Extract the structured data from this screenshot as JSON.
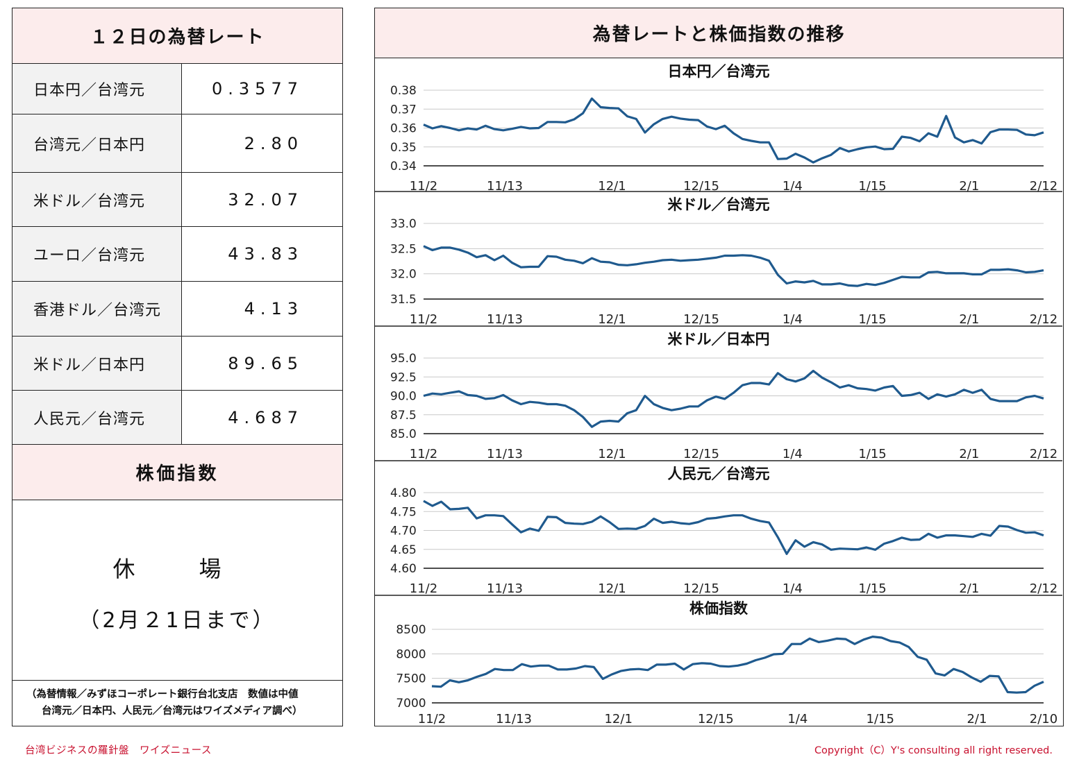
{
  "left_panel": {
    "title": "１２日の為替レート",
    "rates": [
      {
        "label": "日本円／台湾元",
        "value": "0.3577"
      },
      {
        "label": "台湾元／日本円",
        "value": "2.80"
      },
      {
        "label": "米ドル／台湾元",
        "value": "32.07"
      },
      {
        "label": "ユーロ／台湾元",
        "value": "43.83"
      },
      {
        "label": "香港ドル／台湾元",
        "value": "4.13"
      },
      {
        "label": "米ドル／日本円",
        "value": "89.65"
      },
      {
        "label": "人民元／台湾元",
        "value": "4.687"
      }
    ],
    "stock_title": "株価指数",
    "closed_text": "休　場",
    "closed_until": "（2月２1日まで）",
    "note_line1": "（為替情報／みずほコーポレート銀行台北支店　数値は中値",
    "note_line2": "台湾元／日本円、人民元／台湾元はワイズメディア調べ）"
  },
  "right_panel": {
    "title": "為替レートと株価指数の推移"
  },
  "footer": {
    "left": "台湾ビジネスの羅針盤　ワイズニュース",
    "right": "Copyright（C）Y's consulting all right reserved."
  },
  "colors": {
    "line": "#1f5a8e",
    "header_bg": "#fcecec",
    "label_bg": "#f2f2f2",
    "footer_text": "#c8102e"
  },
  "chart_data": [
    {
      "type": "line",
      "title": "日本円／台湾元",
      "ylim": [
        0.34,
        0.38
      ],
      "yticks": [
        "0.38",
        "0.37",
        "0.36",
        "0.35",
        "0.34"
      ],
      "xticks": [
        "11/2",
        "11/13",
        "12/1",
        "12/15",
        "1/4",
        "1/15",
        "2/1",
        "2/12"
      ],
      "grid": true,
      "series": [
        {
          "values": [
            0.3618,
            0.3598,
            0.361,
            0.36,
            0.3588,
            0.3598,
            0.3592,
            0.3612,
            0.3594,
            0.3588,
            0.3596,
            0.3606,
            0.3598,
            0.36,
            0.3632,
            0.3632,
            0.363,
            0.3646,
            0.3678,
            0.3756,
            0.371,
            0.3706,
            0.3704,
            0.3662,
            0.3648,
            0.3576,
            0.362,
            0.3648,
            0.366,
            0.365,
            0.3644,
            0.3642,
            0.3608,
            0.3594,
            0.3612,
            0.3572,
            0.3542,
            0.3532,
            0.3524,
            0.3524,
            0.3436,
            0.3438,
            0.3464,
            0.3444,
            0.3418,
            0.344,
            0.3458,
            0.3494,
            0.3476,
            0.3488,
            0.3498,
            0.3502,
            0.3488,
            0.349,
            0.3554,
            0.3548,
            0.353,
            0.3572,
            0.3554,
            0.3664,
            0.355,
            0.3524,
            0.3536,
            0.3518,
            0.3578,
            0.3592,
            0.3592,
            0.359,
            0.3566,
            0.3562,
            0.3577
          ]
        }
      ]
    },
    {
      "type": "line",
      "title": "米ドル／台湾元",
      "ylim": [
        31.5,
        33.0
      ],
      "yticks": [
        "33.0",
        "32.5",
        "32.0",
        "31.5"
      ],
      "xticks": [
        "11/2",
        "11/13",
        "12/1",
        "12/15",
        "1/4",
        "1/15",
        "2/1",
        "2/12"
      ],
      "grid": true,
      "series": [
        {
          "values": [
            32.55,
            32.47,
            32.52,
            32.52,
            32.48,
            32.42,
            32.33,
            32.37,
            32.27,
            32.36,
            32.22,
            32.13,
            32.14,
            32.14,
            32.35,
            32.34,
            32.28,
            32.26,
            32.21,
            32.31,
            32.24,
            32.23,
            32.18,
            32.17,
            32.19,
            32.22,
            32.24,
            32.27,
            32.28,
            32.26,
            32.27,
            32.28,
            32.3,
            32.32,
            32.36,
            32.36,
            32.37,
            32.36,
            32.32,
            32.26,
            31.98,
            31.81,
            31.85,
            31.83,
            31.86,
            31.79,
            31.79,
            31.81,
            31.77,
            31.76,
            31.8,
            31.78,
            31.82,
            31.88,
            31.94,
            31.93,
            31.93,
            32.03,
            32.04,
            32.01,
            32.01,
            32.01,
            31.99,
            31.99,
            32.08,
            32.08,
            32.09,
            32.07,
            32.03,
            32.04,
            32.07
          ]
        }
      ]
    },
    {
      "type": "line",
      "title": "米ドル／日本円",
      "ylim": [
        85.0,
        95.0
      ],
      "yticks": [
        "95.0",
        "92.5",
        "90.0",
        "87.5",
        "85.0"
      ],
      "xticks": [
        "11/2",
        "11/13",
        "12/1",
        "12/15",
        "1/4",
        "1/15",
        "2/1",
        "2/12"
      ],
      "grid": true,
      "series": [
        {
          "values": [
            90.0,
            90.3,
            90.2,
            90.4,
            90.6,
            90.1,
            90.0,
            89.6,
            89.7,
            90.1,
            89.4,
            88.9,
            89.2,
            89.1,
            88.9,
            88.9,
            88.7,
            88.1,
            87.2,
            85.9,
            86.6,
            86.7,
            86.6,
            87.7,
            88.1,
            90.0,
            88.9,
            88.4,
            88.1,
            88.3,
            88.6,
            88.6,
            89.4,
            89.9,
            89.6,
            90.4,
            91.4,
            91.7,
            91.7,
            91.5,
            93.0,
            92.2,
            91.9,
            92.3,
            93.3,
            92.4,
            91.8,
            91.1,
            91.4,
            91.0,
            90.9,
            90.7,
            91.1,
            91.3,
            90.0,
            90.1,
            90.4,
            89.6,
            90.2,
            89.9,
            90.2,
            90.8,
            90.4,
            90.8,
            89.6,
            89.3,
            89.3,
            89.3,
            89.8,
            90.0,
            89.65
          ]
        }
      ]
    },
    {
      "type": "line",
      "title": "人民元／台湾元",
      "ylim": [
        4.6,
        4.8
      ],
      "yticks": [
        "4.80",
        "4.75",
        "4.70",
        "4.65",
        "4.60"
      ],
      "xticks": [
        "11/2",
        "11/13",
        "12/1",
        "12/15",
        "1/4",
        "1/15",
        "2/1",
        "2/12"
      ],
      "grid": true,
      "series": [
        {
          "values": [
            4.778,
            4.765,
            4.776,
            4.756,
            4.757,
            4.76,
            4.732,
            4.74,
            4.74,
            4.738,
            4.716,
            4.695,
            4.705,
            4.699,
            4.736,
            4.735,
            4.72,
            4.718,
            4.717,
            4.723,
            4.737,
            4.722,
            4.704,
            4.705,
            4.704,
            4.712,
            4.731,
            4.72,
            4.723,
            4.719,
            4.717,
            4.722,
            4.731,
            4.733,
            4.737,
            4.74,
            4.74,
            4.731,
            4.725,
            4.721,
            4.682,
            4.638,
            4.674,
            4.657,
            4.669,
            4.663,
            4.649,
            4.652,
            4.651,
            4.65,
            4.655,
            4.649,
            4.665,
            4.672,
            4.681,
            4.675,
            4.676,
            4.691,
            4.681,
            4.687,
            4.687,
            4.685,
            4.683,
            4.691,
            4.686,
            4.712,
            4.71,
            4.701,
            4.694,
            4.695,
            4.687
          ]
        }
      ]
    },
    {
      "type": "line",
      "title": "株価指数",
      "ylim": [
        7000,
        8500
      ],
      "yticks": [
        "8500",
        "8000",
        "7500",
        "7000"
      ],
      "xticks": [
        "11/2",
        "11/13",
        "12/1",
        "12/15",
        "1/4",
        "1/15",
        "2/1",
        "2/10"
      ],
      "grid": true,
      "series": [
        {
          "values": [
            7340,
            7330,
            7460,
            7420,
            7460,
            7530,
            7590,
            7690,
            7670,
            7670,
            7790,
            7740,
            7760,
            7760,
            7680,
            7680,
            7700,
            7750,
            7730,
            7490,
            7580,
            7650,
            7680,
            7690,
            7670,
            7780,
            7780,
            7800,
            7680,
            7790,
            7810,
            7800,
            7750,
            7740,
            7760,
            7800,
            7870,
            7920,
            7990,
            8000,
            8200,
            8200,
            8310,
            8240,
            8270,
            8310,
            8300,
            8200,
            8290,
            8350,
            8330,
            8260,
            8230,
            8140,
            7940,
            7880,
            7600,
            7560,
            7690,
            7630,
            7520,
            7430,
            7550,
            7540,
            7220,
            7210,
            7220,
            7350,
            7430
          ]
        }
      ]
    }
  ]
}
